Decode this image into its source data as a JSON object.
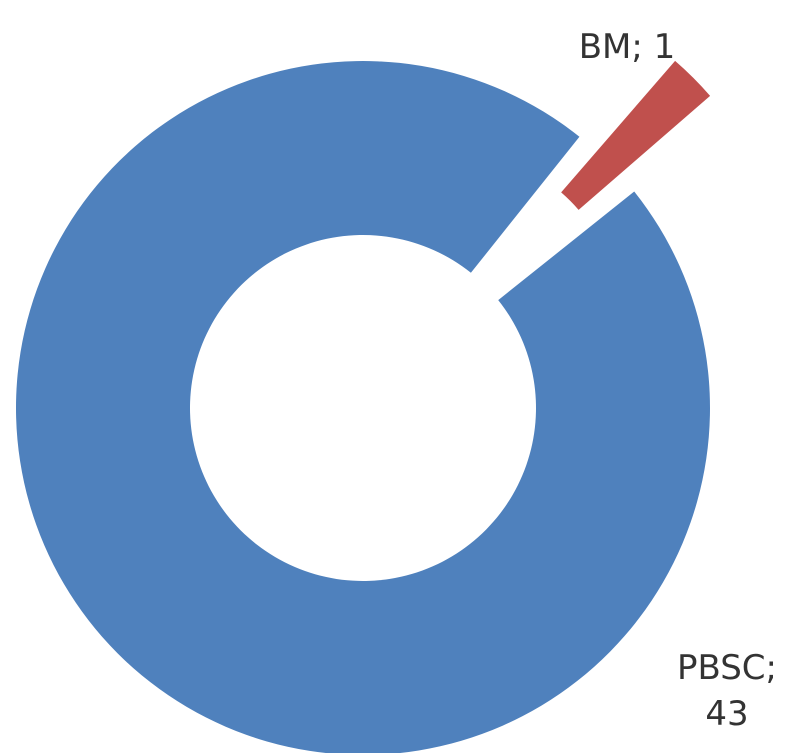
{
  "chart_data": {
    "type": "pie",
    "variant": "doughnut",
    "title": "",
    "slices": [
      {
        "label": "PBSC",
        "value": 43,
        "color": "#4f81bd",
        "label_lines": [
          "PBSC;",
          "43"
        ]
      },
      {
        "label": "BM",
        "value": 1,
        "color": "#c0504d",
        "label_lines": [
          "BM; 1"
        ]
      }
    ],
    "exploded_slice": "BM",
    "legend": "none",
    "data_labels": "outside"
  }
}
